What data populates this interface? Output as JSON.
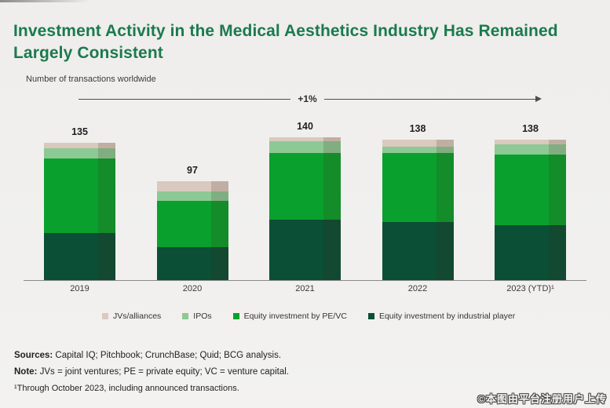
{
  "title": "Investment Activity in the Medical Aesthetics Industry Has Remained Largely Consistent",
  "subtitle": "Number of transactions worldwide",
  "trend_label": "+1%",
  "chart_data": {
    "type": "bar",
    "stacked": true,
    "title": "Investment Activity in the Medical Aesthetics Industry Has Remained Largely Consistent",
    "ylabel": "Number of transactions worldwide",
    "categories": [
      "2019",
      "2020",
      "2021",
      "2022",
      "2023 (YTD)¹"
    ],
    "totals": [
      135,
      97,
      140,
      138,
      138
    ],
    "series": [
      {
        "name": "Equity investment by industrial player",
        "color": "#0a4f36",
        "values": [
          46,
          32,
          59,
          57,
          54
        ]
      },
      {
        "name": "Equity investment by PE/VC",
        "color": "#0aa02d",
        "values": [
          73,
          46,
          66,
          68,
          69
        ]
      },
      {
        "name": "IPOs",
        "color": "#8cc994",
        "values": [
          10,
          9,
          11,
          6,
          10
        ]
      },
      {
        "name": "JVs/alliances",
        "color": "#d9c9be",
        "values": [
          6,
          10,
          4,
          7,
          5
        ]
      }
    ],
    "annotation": "+1%",
    "legend_position": "bottom",
    "grid": false,
    "ylim": [
      0,
      168
    ]
  },
  "legend": [
    {
      "label": "JVs/alliances",
      "color": "#d9c9be"
    },
    {
      "label": "IPOs",
      "color": "#8cc994"
    },
    {
      "label": "Equity investment by PE/VC",
      "color": "#0aa02d"
    },
    {
      "label": "Equity investment by industrial player",
      "color": "#0a4f36"
    }
  ],
  "footer": {
    "sources_label": "Sources:",
    "sources_text": " Capital IQ; Pitchbook; CrunchBase; Quid; BCG analysis.",
    "note_label": "Note:",
    "note_text": " JVs = joint ventures; PE = private equity; VC = venture capital.",
    "footnote": "¹Through October 2023, including announced transactions."
  },
  "watermark": "©本图由平台注册用户上传",
  "colors": {
    "title_green": "#1b7a4e",
    "background": "#f0efed",
    "axis": "#8a8a8a",
    "arrow": "#4d4d4d"
  }
}
